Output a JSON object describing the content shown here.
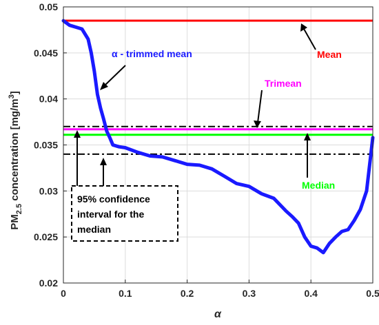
{
  "chart_data": {
    "type": "line",
    "x_axis": {
      "label": "α",
      "lim": [
        0,
        0.5
      ],
      "ticks": [
        0,
        0.1,
        0.2,
        0.3,
        0.4,
        0.5
      ],
      "tick_labels": [
        "0",
        "0.1",
        "0.2",
        "0.3",
        "0.4",
        "0.5"
      ]
    },
    "y_axis": {
      "label_main": "PM",
      "label_sub": "2.5",
      "label_rest": " concentration [mg/m",
      "label_sup": "3",
      "label_end": "]",
      "lim": [
        0.02,
        0.05
      ],
      "ticks": [
        0.02,
        0.025,
        0.03,
        0.035,
        0.04,
        0.045,
        0.05
      ],
      "tick_labels": [
        "0.02",
        "0.025",
        "0.03",
        "0.035",
        "0.04",
        "0.045",
        "0.05"
      ]
    },
    "grid": true,
    "series": [
      {
        "name": "α - trimmed mean",
        "color": "#1a1aff",
        "x": [
          0,
          0.01,
          0.02,
          0.03,
          0.04,
          0.045,
          0.05,
          0.055,
          0.06,
          0.065,
          0.07,
          0.075,
          0.08,
          0.09,
          0.1,
          0.12,
          0.14,
          0.16,
          0.18,
          0.2,
          0.22,
          0.24,
          0.26,
          0.28,
          0.3,
          0.32,
          0.34,
          0.36,
          0.37,
          0.38,
          0.39,
          0.4,
          0.41,
          0.42,
          0.43,
          0.44,
          0.45,
          0.46,
          0.47,
          0.48,
          0.49,
          0.5
        ],
        "y": [
          0.0485,
          0.048,
          0.0478,
          0.0476,
          0.0465,
          0.045,
          0.043,
          0.0405,
          0.039,
          0.0378,
          0.0365,
          0.0358,
          0.035,
          0.0348,
          0.0347,
          0.0342,
          0.0338,
          0.0337,
          0.0333,
          0.0329,
          0.0328,
          0.0324,
          0.0316,
          0.0308,
          0.0305,
          0.0297,
          0.0292,
          0.0278,
          0.0272,
          0.0265,
          0.025,
          0.024,
          0.0238,
          0.0233,
          0.0243,
          0.025,
          0.0256,
          0.0258,
          0.0268,
          0.028,
          0.03,
          0.0358
        ]
      }
    ],
    "hlines": [
      {
        "name": "Mean",
        "y": 0.0485,
        "color": "#ff0000",
        "style": "solid"
      },
      {
        "name": "Trimean",
        "y": 0.0367,
        "color": "#ff00ff",
        "style": "solid"
      },
      {
        "name": "Median",
        "y": 0.0361,
        "color": "#00ff00",
        "style": "solid"
      },
      {
        "name": "95% upper",
        "y": 0.037,
        "color": "#000000",
        "style": "dashdot"
      },
      {
        "name": "95% lower",
        "y": 0.034,
        "color": "#000000",
        "style": "dashdot"
      }
    ],
    "annotations": {
      "mean": {
        "text": "Mean",
        "color": "#ff0000"
      },
      "trimean": {
        "text": "Trimean",
        "color": "#ff00ff"
      },
      "median": {
        "text": "Median",
        "color": "#00ff00"
      },
      "trimmed": {
        "text": "α - trimmed mean",
        "color": "#1a1aff"
      },
      "ci_lines": [
        "95% confidence",
        "interval for the",
        "median"
      ]
    }
  }
}
